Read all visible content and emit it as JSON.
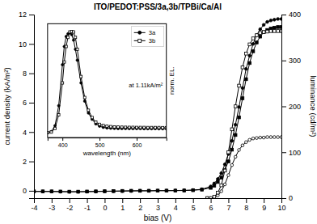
{
  "chart_data": [
    {
      "type": "line",
      "title": "ITO/PEDOT:PSS/3a,3b/TPBi/Ca/Al",
      "xlabel": "bias (V)",
      "ylabel": "current density (kA/m²)",
      "y2label": "luminance (cd/m²)",
      "xlim": [
        -4,
        10
      ],
      "xticks": [
        -4,
        -3,
        -2,
        -1,
        0,
        1,
        2,
        3,
        4,
        5,
        6,
        7,
        8,
        9,
        10
      ],
      "ylim": [
        -0.5,
        12
      ],
      "yticks": [
        0,
        2,
        4,
        6,
        8,
        10,
        12
      ],
      "y2lim": [
        0,
        400
      ],
      "y2ticks": [
        0,
        100,
        200,
        300,
        400
      ],
      "series": [
        {
          "color": "black",
          "marker": "circle",
          "x": [
            -4,
            -3.5,
            -3,
            -2.5,
            -2,
            -1.5,
            -1,
            -0.5,
            0,
            0.5,
            1,
            1.5,
            2,
            2.5,
            3,
            3.5,
            4,
            4.5,
            5,
            5.5,
            6,
            6.2,
            6.4,
            6.6,
            6.8,
            7.0,
            7.2,
            7.4,
            7.6,
            7.8,
            8.0,
            8.2,
            8.4,
            8.6,
            8.8,
            9.0,
            9.2,
            9.4,
            9.6,
            9.8,
            10.0
          ],
          "values": [
            -0.05,
            -0.05,
            -0.05,
            -0.06,
            -0.07,
            -0.07,
            -0.06,
            -0.05,
            -0.04,
            -0.03,
            -0.02,
            -0.01,
            0.0,
            0.0,
            0.01,
            0.01,
            0.02,
            0.03,
            0.05,
            0.1,
            0.3,
            0.5,
            0.8,
            1.2,
            1.8,
            2.5,
            3.4,
            4.5,
            5.7,
            7.0,
            8.3,
            9.2,
            10.0,
            10.6,
            11.0,
            11.3,
            11.5,
            11.6,
            11.65,
            11.7,
            11.7
          ]
        },
        {
          "color": "black",
          "marker": "square",
          "x": [
            -4,
            -3.5,
            -3,
            -2.5,
            -2,
            -1.5,
            -1,
            -0.5,
            0,
            0.5,
            1,
            1.5,
            2,
            2.5,
            3,
            3.5,
            4,
            4.5,
            5,
            5.5,
            6,
            6.2,
            6.4,
            6.6,
            6.8,
            7.0,
            7.2,
            7.4,
            7.6,
            7.8,
            8.0,
            8.2,
            8.4,
            8.6,
            8.8,
            9.0,
            9.2,
            9.4,
            9.6,
            9.8,
            10.0
          ],
          "values": [
            -0.04,
            -0.04,
            -0.04,
            -0.05,
            -0.06,
            -0.06,
            -0.05,
            -0.04,
            -0.03,
            -0.02,
            -0.01,
            0.0,
            0.0,
            0.0,
            0.01,
            0.01,
            0.01,
            0.02,
            0.04,
            0.08,
            0.2,
            0.35,
            0.6,
            0.9,
            1.4,
            2.0,
            2.8,
            3.8,
            5.0,
            6.3,
            7.6,
            8.7,
            9.5,
            10.1,
            10.5,
            10.8,
            10.95,
            11.05,
            11.1,
            11.15,
            11.15
          ]
        },
        {
          "color": "black",
          "marker": "circle-open",
          "axis": "y2",
          "x": [
            5.8,
            6.0,
            6.2,
            6.4,
            6.6,
            6.8,
            7.0,
            7.2,
            7.4,
            7.6,
            7.8,
            8.0,
            8.2,
            8.4,
            8.6,
            8.8,
            9.0,
            9.2,
            9.4,
            9.6,
            9.8,
            10.0
          ],
          "values": [
            0,
            0,
            2,
            6,
            15,
            30,
            50,
            72,
            90,
            105,
            115,
            122,
            127,
            130,
            131,
            132,
            132,
            133,
            133,
            133,
            133,
            133
          ]
        },
        {
          "color": "black",
          "marker": "square-open",
          "axis": "y2",
          "x": [
            5.8,
            6.0,
            6.2,
            6.4,
            6.6,
            6.8,
            7.0,
            7.2,
            7.4,
            7.6,
            7.8,
            8.0,
            8.2,
            8.4,
            8.6,
            8.8,
            9.0,
            9.2,
            9.4,
            9.6,
            9.8,
            10.0
          ],
          "values": [
            0,
            0,
            3,
            12,
            28,
            60,
            100,
            150,
            200,
            245,
            285,
            315,
            335,
            348,
            355,
            360,
            362,
            363,
            364,
            364,
            364,
            364
          ]
        }
      ]
    },
    {
      "type": "line",
      "xlabel": "wavelength (nm)",
      "ylabel": "norm. EL.",
      "xlim": [
        360,
        680
      ],
      "xticks": [
        400,
        500,
        600
      ],
      "ylim": [
        -0.5,
        12
      ],
      "tick_labels": "x",
      "legend": "upper right",
      "annotations": [
        "at 1.11kA/m²"
      ],
      "series": [
        {
          "name": "3a",
          "color": "black",
          "marker": "circle",
          "x": [
            360,
            370,
            380,
            390,
            400,
            405,
            410,
            415,
            420,
            425,
            430,
            435,
            440,
            450,
            460,
            470,
            480,
            490,
            500,
            510,
            520,
            530,
            540,
            550,
            560,
            570,
            580,
            590,
            600,
            610,
            620,
            630,
            640,
            650,
            660,
            670,
            680
          ],
          "values": [
            0.05,
            0.15,
            0.8,
            3.0,
            7.5,
            9.5,
            10.6,
            10.9,
            11.0,
            10.8,
            10.2,
            9.2,
            8.0,
            5.5,
            3.5,
            2.2,
            1.5,
            1.0,
            0.75,
            0.62,
            0.55,
            0.52,
            0.5,
            0.49,
            0.49,
            0.49,
            0.48,
            0.48,
            0.48,
            0.48,
            0.47,
            0.47,
            0.47,
            0.47,
            0.46,
            0.46,
            0.46
          ]
        },
        {
          "name": "3b",
          "color": "black",
          "marker": "square-open",
          "x": [
            360,
            370,
            380,
            390,
            400,
            405,
            410,
            415,
            420,
            425,
            430,
            435,
            440,
            450,
            460,
            470,
            480,
            490,
            500,
            510,
            520,
            530,
            540,
            550,
            560,
            570,
            580,
            590,
            600,
            610,
            620,
            630,
            640,
            650,
            660,
            670,
            680
          ],
          "values": [
            0.03,
            0.1,
            0.5,
            2.0,
            5.5,
            7.8,
            9.5,
            10.5,
            11.1,
            11.15,
            11.1,
            10.5,
            9.2,
            6.2,
            3.9,
            2.5,
            1.7,
            1.2,
            0.95,
            0.82,
            0.74,
            0.7,
            0.67,
            0.65,
            0.64,
            0.63,
            0.62,
            0.62,
            0.61,
            0.61,
            0.61,
            0.6,
            0.6,
            0.6,
            0.6,
            0.59,
            0.59
          ]
        }
      ]
    }
  ]
}
